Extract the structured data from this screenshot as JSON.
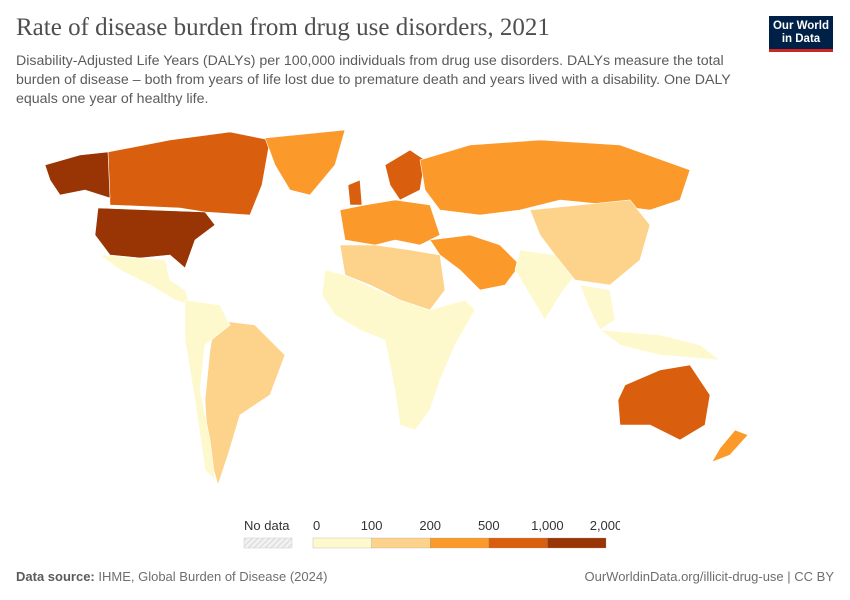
{
  "header": {
    "title": "Rate of disease burden from drug use disorders, 2021",
    "subtitle": "Disability-Adjusted Life Years (DALYs) per 100,000 individuals from drug use disorders. DALYs measure the total burden of disease – both from years of life lost due to premature death and years lived with a disability. One DALY equals one year of healthy life.",
    "logo_line1": "Our World",
    "logo_line2": "in Data"
  },
  "chart_data": {
    "type": "choropleth-map",
    "year": 2021,
    "legend": {
      "no_data_label": "No data",
      "bins": [
        0,
        100,
        200,
        500,
        1000,
        2000
      ],
      "bin_labels": [
        "0",
        "100",
        "200",
        "500",
        "1,000",
        "2,000"
      ],
      "colors": [
        "#fef9cc",
        "#fdd38b",
        "#fb9a2a",
        "#d95f0e",
        "#993404"
      ],
      "no_data_color": "#e6e6e6"
    },
    "regions": [
      {
        "name": "United States",
        "bin": "1,000–2,000"
      },
      {
        "name": "Canada",
        "bin": "500–1,000"
      },
      {
        "name": "Alaska (US)",
        "bin": "1,000–2,000"
      },
      {
        "name": "Greenland",
        "bin": "200–500"
      },
      {
        "name": "Mexico & Central America",
        "bin": "0–100"
      },
      {
        "name": "Brazil & Argentina",
        "bin": "100–200"
      },
      {
        "name": "Rest of South America",
        "bin": "0–100"
      },
      {
        "name": "Europe",
        "bin": "200–500"
      },
      {
        "name": "United Kingdom & Scandinavia",
        "bin": "500–1,000"
      },
      {
        "name": "Russia",
        "bin": "200–500"
      },
      {
        "name": "Middle East & Iran",
        "bin": "200–500"
      },
      {
        "name": "Africa",
        "bin": "0–100"
      },
      {
        "name": "North Africa & Sudan",
        "bin": "100–200"
      },
      {
        "name": "India",
        "bin": "0–100"
      },
      {
        "name": "China",
        "bin": "100–200"
      },
      {
        "name": "Southeast Asia",
        "bin": "0–100"
      },
      {
        "name": "Australia",
        "bin": "500–1,000"
      },
      {
        "name": "New Zealand",
        "bin": "200–500"
      }
    ]
  },
  "footer": {
    "source_label": "Data source:",
    "source_text": "IHME, Global Burden of Disease (2024)",
    "url_text": "OurWorldinData.org/illicit-drug-use | CC BY"
  }
}
